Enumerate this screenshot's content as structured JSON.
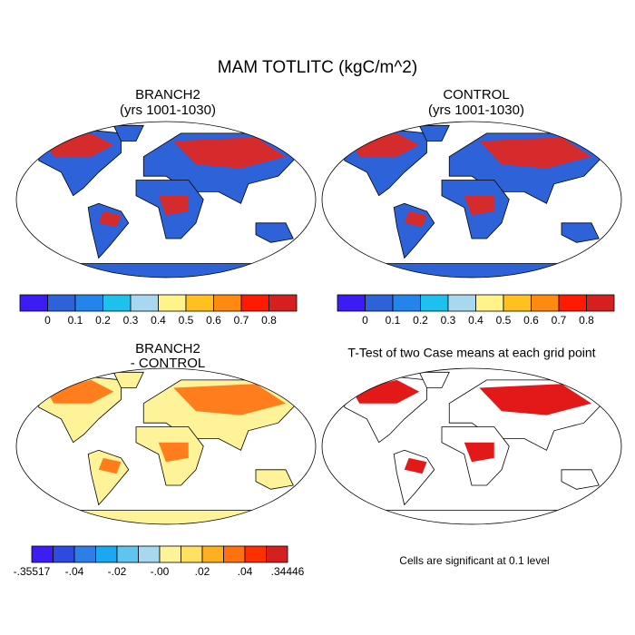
{
  "title": "MAM TOTLITC (kgC/m^2)",
  "panels": [
    {
      "title": "BRANCH2",
      "subtitle": "(yrs 1001-1030)"
    },
    {
      "title": "CONTROL",
      "subtitle": "(yrs 1001-1030)"
    },
    {
      "title": "BRANCH2",
      "subtitle": "- CONTROL"
    },
    {
      "title": "T-Test of two Case means at each grid point"
    }
  ],
  "colorbars": [
    {
      "colors": [
        "#3c1cf5",
        "#2e62d9",
        "#2385ec",
        "#1ec1ee",
        "#a8d8f0",
        "#fff38a",
        "#ffc020",
        "#ff8a10",
        "#ff1a00",
        "#d62020"
      ],
      "labels": [
        null,
        "0",
        "0.1",
        "0.2",
        "0.3",
        "0.4",
        "0.5",
        "0.6",
        "0.7",
        "0.8",
        null
      ]
    },
    {
      "colors": [
        "#3c1cf5",
        "#2e62d9",
        "#2385ec",
        "#1ec1ee",
        "#a8d8f0",
        "#fff38a",
        "#ffc020",
        "#ff8a10",
        "#ff1a00",
        "#d62020"
      ],
      "labels": [
        null,
        "0",
        "0.1",
        "0.2",
        "0.3",
        "0.4",
        "0.5",
        "0.6",
        "0.7",
        "0.8",
        null
      ]
    },
    {
      "colors": [
        "#3c1ef5",
        "#2e4ae0",
        "#2e7ee8",
        "#1aa8f0",
        "#5fc4f0",
        "#a8d8f0",
        "#fff39a",
        "#ffe060",
        "#ffb020",
        "#ff7010",
        "#ff3000",
        "#d62020"
      ],
      "labels": [
        "-.35517",
        null,
        "-.04",
        null,
        "-.02",
        null,
        "-.00",
        null,
        ".02",
        null,
        ".04",
        null,
        ".34446"
      ]
    }
  ],
  "note": "Cells are significant at 0.1 level"
}
